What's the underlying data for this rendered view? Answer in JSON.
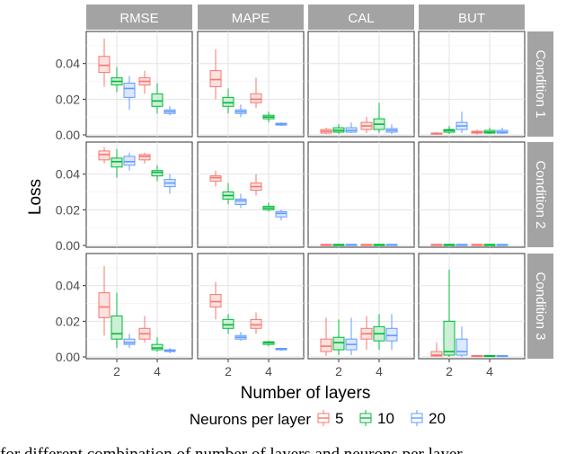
{
  "chart_data": {
    "type": "boxplot",
    "xlabel": "Number of layers",
    "ylabel": "Loss",
    "x_ticks": [
      "2",
      "4"
    ],
    "y_ticks": [
      "0.00",
      "0.02",
      "0.04"
    ],
    "ylim_by_row": [
      [
        -0.001,
        0.058
      ],
      [
        -0.001,
        0.058
      ],
      [
        -0.001,
        0.058
      ]
    ],
    "columns": [
      "RMSE",
      "MAPE",
      "CAL",
      "BUT"
    ],
    "rows": [
      "Condition 1",
      "Condition 2",
      "Condition 3"
    ],
    "legend": {
      "title": "Neurons per layer",
      "entries": [
        {
          "label": "5",
          "color": "#F8766D"
        },
        {
          "label": "10",
          "color": "#00BA38"
        },
        {
          "label": "20",
          "color": "#619CFF"
        }
      ]
    },
    "caption": "for different combination of number of layers and neurons per layer",
    "series": [
      {
        "row": 0,
        "col": 0,
        "boxes": [
          [
            0.027,
            0.035,
            0.039,
            0.044,
            0.054
          ],
          [
            0.024,
            0.028,
            0.03,
            0.032,
            0.038
          ],
          [
            0.014,
            0.021,
            0.026,
            0.029,
            0.033
          ],
          [
            0.023,
            0.028,
            0.03,
            0.032,
            0.036
          ],
          [
            0.012,
            0.016,
            0.019,
            0.023,
            0.029
          ],
          [
            0.011,
            0.012,
            0.013,
            0.014,
            0.016
          ]
        ]
      },
      {
        "row": 0,
        "col": 1,
        "boxes": [
          [
            0.02,
            0.027,
            0.031,
            0.036,
            0.048
          ],
          [
            0.012,
            0.016,
            0.018,
            0.021,
            0.026
          ],
          [
            0.01,
            0.012,
            0.013,
            0.014,
            0.017
          ],
          [
            0.015,
            0.018,
            0.02,
            0.023,
            0.032
          ],
          [
            0.007,
            0.009,
            0.01,
            0.011,
            0.013
          ],
          [
            0.005,
            0.0055,
            0.006,
            0.0065,
            0.007
          ]
        ]
      },
      {
        "row": 0,
        "col": 2,
        "boxes": [
          [
            0.0005,
            0.001,
            0.002,
            0.003,
            0.004
          ],
          [
            0.0005,
            0.0015,
            0.0025,
            0.004,
            0.006
          ],
          [
            0.001,
            0.0015,
            0.0025,
            0.004,
            0.007
          ],
          [
            0.001,
            0.003,
            0.005,
            0.007,
            0.01
          ],
          [
            0.001,
            0.003,
            0.006,
            0.009,
            0.018
          ],
          [
            0.0005,
            0.0015,
            0.0025,
            0.0035,
            0.006
          ]
        ]
      },
      {
        "row": 0,
        "col": 3,
        "boxes": [
          [
            0.0,
            0.0005,
            0.0008,
            0.001,
            0.0015
          ],
          [
            0.0005,
            0.0015,
            0.0025,
            0.003,
            0.005
          ],
          [
            0.001,
            0.003,
            0.005,
            0.007,
            0.013
          ],
          [
            0.0,
            0.001,
            0.0015,
            0.002,
            0.003
          ],
          [
            0.0005,
            0.001,
            0.0015,
            0.0025,
            0.004
          ],
          [
            0.0005,
            0.001,
            0.0015,
            0.0025,
            0.004
          ]
        ]
      },
      {
        "row": 1,
        "col": 0,
        "boxes": [
          [
            0.046,
            0.048,
            0.051,
            0.053,
            0.055
          ],
          [
            0.038,
            0.044,
            0.047,
            0.049,
            0.054
          ],
          [
            0.042,
            0.045,
            0.047,
            0.05,
            0.052
          ],
          [
            0.046,
            0.048,
            0.05,
            0.051,
            0.052
          ],
          [
            0.036,
            0.039,
            0.041,
            0.042,
            0.045
          ],
          [
            0.029,
            0.033,
            0.035,
            0.037,
            0.04
          ]
        ]
      },
      {
        "row": 1,
        "col": 1,
        "boxes": [
          [
            0.033,
            0.036,
            0.038,
            0.039,
            0.042
          ],
          [
            0.023,
            0.026,
            0.028,
            0.03,
            0.035
          ],
          [
            0.021,
            0.023,
            0.025,
            0.026,
            0.029
          ],
          [
            0.028,
            0.031,
            0.033,
            0.035,
            0.04
          ],
          [
            0.019,
            0.02,
            0.021,
            0.022,
            0.024
          ],
          [
            0.014,
            0.016,
            0.018,
            0.019,
            0.02
          ]
        ]
      },
      {
        "row": 1,
        "col": 2,
        "boxes": [
          [
            0.0,
            0.0,
            0.0005,
            0.0005,
            0.0005
          ],
          [
            0.0,
            0.0,
            0.0005,
            0.0005,
            0.0005
          ],
          [
            0.0,
            0.0,
            0.0005,
            0.0005,
            0.0005
          ],
          [
            0.0,
            0.0,
            0.0005,
            0.0005,
            0.0005
          ],
          [
            0.0,
            0.0,
            0.0005,
            0.0005,
            0.0005
          ],
          [
            0.0,
            0.0,
            0.0005,
            0.0005,
            0.0005
          ]
        ]
      },
      {
        "row": 1,
        "col": 3,
        "boxes": [
          [
            0.0,
            0.0,
            0.0005,
            0.0005,
            0.0005
          ],
          [
            0.0,
            0.0,
            0.0005,
            0.0005,
            0.0005
          ],
          [
            0.0,
            0.0,
            0.0005,
            0.0005,
            0.0005
          ],
          [
            0.0,
            0.0,
            0.0005,
            0.0005,
            0.0005
          ],
          [
            0.0,
            0.0,
            0.0005,
            0.0005,
            0.0005
          ],
          [
            0.0,
            0.0,
            0.0005,
            0.0005,
            0.0005
          ]
        ]
      },
      {
        "row": 2,
        "col": 0,
        "boxes": [
          [
            0.012,
            0.022,
            0.028,
            0.036,
            0.051
          ],
          [
            0.005,
            0.01,
            0.013,
            0.023,
            0.036
          ],
          [
            0.005,
            0.007,
            0.008,
            0.01,
            0.013
          ],
          [
            0.008,
            0.01,
            0.013,
            0.016,
            0.023
          ],
          [
            0.003,
            0.004,
            0.005,
            0.007,
            0.011
          ],
          [
            0.002,
            0.003,
            0.0035,
            0.004,
            0.005
          ]
        ]
      },
      {
        "row": 2,
        "col": 1,
        "boxes": [
          [
            0.021,
            0.028,
            0.031,
            0.035,
            0.042
          ],
          [
            0.013,
            0.016,
            0.018,
            0.021,
            0.024
          ],
          [
            0.009,
            0.01,
            0.011,
            0.012,
            0.014
          ],
          [
            0.013,
            0.016,
            0.018,
            0.021,
            0.025
          ],
          [
            0.006,
            0.007,
            0.008,
            0.0085,
            0.009
          ],
          [
            0.0035,
            0.004,
            0.0045,
            0.0048,
            0.005
          ]
        ]
      },
      {
        "row": 2,
        "col": 2,
        "boxes": [
          [
            0.0005,
            0.003,
            0.006,
            0.01,
            0.022
          ],
          [
            0.001,
            0.004,
            0.008,
            0.011,
            0.021
          ],
          [
            0.001,
            0.004,
            0.007,
            0.01,
            0.022
          ],
          [
            0.004,
            0.01,
            0.013,
            0.016,
            0.023
          ],
          [
            0.004,
            0.009,
            0.013,
            0.017,
            0.024
          ],
          [
            0.004,
            0.009,
            0.012,
            0.016,
            0.024
          ]
        ]
      },
      {
        "row": 2,
        "col": 3,
        "boxes": [
          [
            0.0,
            0.0005,
            0.001,
            0.003,
            0.008
          ],
          [
            0.0,
            0.001,
            0.003,
            0.02,
            0.049
          ],
          [
            0.0,
            0.001,
            0.003,
            0.01,
            0.017
          ],
          [
            0.0,
            0.0003,
            0.0005,
            0.0008,
            0.001
          ],
          [
            0.0,
            0.0003,
            0.0005,
            0.0008,
            0.001
          ],
          [
            0.0,
            0.0003,
            0.0005,
            0.0008,
            0.001
          ]
        ]
      }
    ]
  }
}
